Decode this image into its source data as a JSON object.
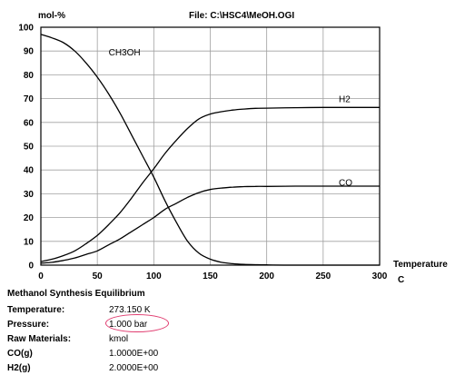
{
  "header": {
    "unit": "mol-%",
    "file": "File: C:\\HSC4\\MeOH.OGI"
  },
  "footer": {
    "title": "Methanol Synthesis Equilibrium",
    "rows": [
      {
        "label": "Temperature:",
        "value": "273.150 K"
      },
      {
        "label": "Pressure:",
        "value": "1.000 bar"
      },
      {
        "label": "Raw Materials:",
        "value": "kmol"
      },
      {
        "label": "CO(g)",
        "value": "1.0000E+00"
      },
      {
        "label": "H2(g)",
        "value": "2.0000E+00"
      }
    ]
  },
  "colors": {
    "highlight": "#e03a6e",
    "grid": "#a0a0a0",
    "line": "#000000"
  },
  "chart_data": {
    "type": "line",
    "xlabel": "Temperature",
    "xunit": "C",
    "ylabel": "mol-%",
    "xlim": [
      0,
      300
    ],
    "ylim": [
      0,
      100
    ],
    "xticks": [
      0,
      50,
      100,
      150,
      200,
      250,
      300
    ],
    "yticks": [
      0,
      10,
      20,
      30,
      40,
      50,
      60,
      70,
      80,
      90,
      100
    ],
    "grid": true,
    "series": [
      {
        "name": "CH3OH",
        "x": [
          0,
          10,
          20,
          30,
          40,
          50,
          60,
          70,
          80,
          90,
          100,
          110,
          120,
          130,
          140,
          150,
          160,
          170,
          180,
          190,
          200,
          225,
          250,
          275,
          300
        ],
        "y": [
          97,
          95.5,
          93.5,
          90,
          85,
          79,
          72,
          64,
          55,
          46,
          37,
          27,
          18,
          10,
          5,
          2.5,
          1.2,
          0.6,
          0.3,
          0.2,
          0.1,
          0,
          0,
          0,
          0
        ]
      },
      {
        "name": "H2",
        "x": [
          0,
          10,
          20,
          30,
          40,
          50,
          60,
          70,
          80,
          90,
          100,
          110,
          120,
          130,
          140,
          150,
          160,
          170,
          180,
          190,
          200,
          225,
          250,
          275,
          300
        ],
        "y": [
          1.5,
          2.5,
          4,
          6,
          9,
          12.5,
          17,
          22,
          28,
          34.5,
          40.5,
          47,
          52.5,
          57.5,
          61.5,
          63.5,
          64.5,
          65.2,
          65.6,
          65.9,
          66,
          66.2,
          66.3,
          66.3,
          66.3
        ]
      },
      {
        "name": "CO",
        "x": [
          0,
          10,
          20,
          30,
          40,
          50,
          60,
          70,
          80,
          90,
          100,
          110,
          120,
          130,
          140,
          150,
          160,
          170,
          180,
          190,
          200,
          225,
          250,
          275,
          300
        ],
        "y": [
          0.8,
          1.2,
          2,
          3,
          4.5,
          6,
          8.5,
          11,
          14,
          17,
          20,
          23.5,
          26,
          28.5,
          30.5,
          31.8,
          32.4,
          32.8,
          33,
          33.1,
          33.1,
          33.2,
          33.2,
          33.2,
          33.2
        ]
      }
    ],
    "series_label_at": {
      "CH3OH": [
        60,
        90
      ],
      "H2": [
        135,
        70
      ],
      "CO": [
        135,
        35
      ]
    }
  }
}
